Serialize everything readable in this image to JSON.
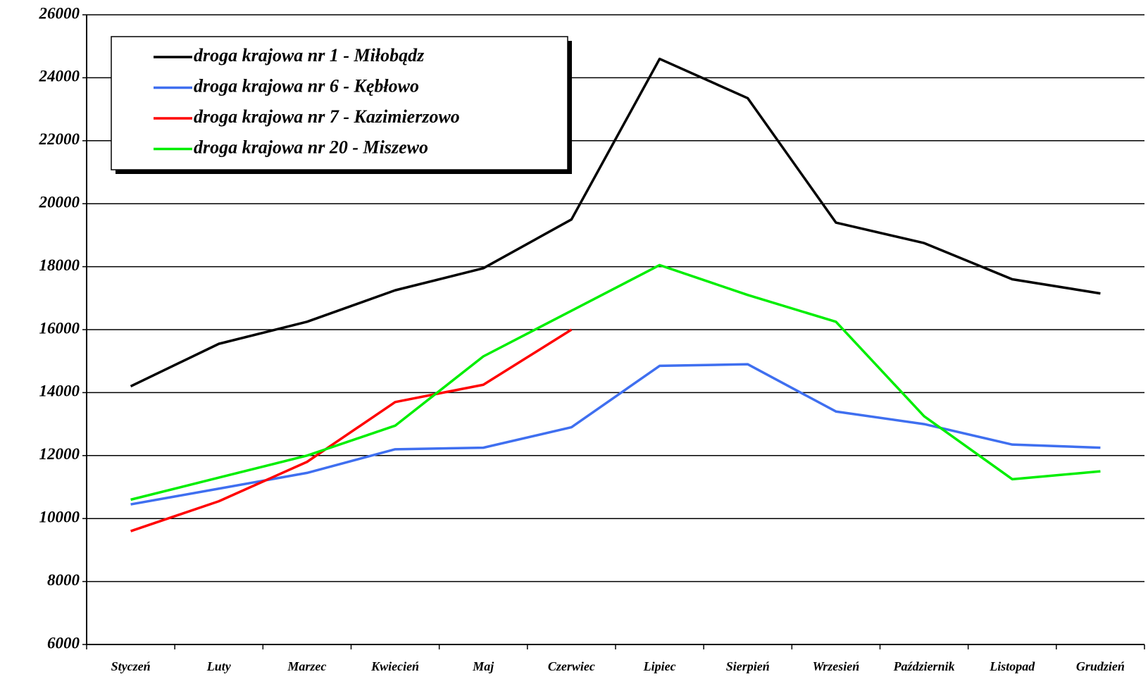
{
  "chart_data": {
    "type": "line",
    "categories": [
      "Styczeń",
      "Luty",
      "Marzec",
      "Kwiecień",
      "Maj",
      "Czerwiec",
      "Lipiec",
      "Sierpień",
      "Wrzesień",
      "Październik",
      "Listopad",
      "Grudzień"
    ],
    "series": [
      {
        "name": "droga krajowa nr 1 - Miłobądz",
        "color": "#000000",
        "values": [
          14200,
          15550,
          16250,
          17250,
          17950,
          19500,
          24600,
          23350,
          19400,
          18750,
          17600,
          17150
        ]
      },
      {
        "name": "droga krajowa nr 6 - Kębłowo",
        "color": "#3f6ff0",
        "values": [
          10450,
          10950,
          11450,
          12200,
          12250,
          12900,
          14850,
          14900,
          13400,
          13000,
          12350,
          12250
        ]
      },
      {
        "name": "droga krajowa nr 7 -  Kazimierzowo",
        "color": "#ff0000",
        "values": [
          9600,
          10550,
          11800,
          13700,
          14250,
          16000,
          null,
          null,
          null,
          null,
          null,
          null
        ]
      },
      {
        "name": "droga krajowa nr 20 - Miszewo",
        "color": "#00ee00",
        "values": [
          10600,
          11300,
          12000,
          12950,
          15150,
          16600,
          18050,
          17100,
          16250,
          13250,
          11250,
          11500
        ]
      }
    ],
    "ylim": [
      6000,
      26000
    ],
    "yticks": [
      6000,
      8000,
      10000,
      12000,
      14000,
      16000,
      18000,
      20000,
      22000,
      24000,
      26000
    ],
    "grid": true,
    "legend": "upper left"
  }
}
